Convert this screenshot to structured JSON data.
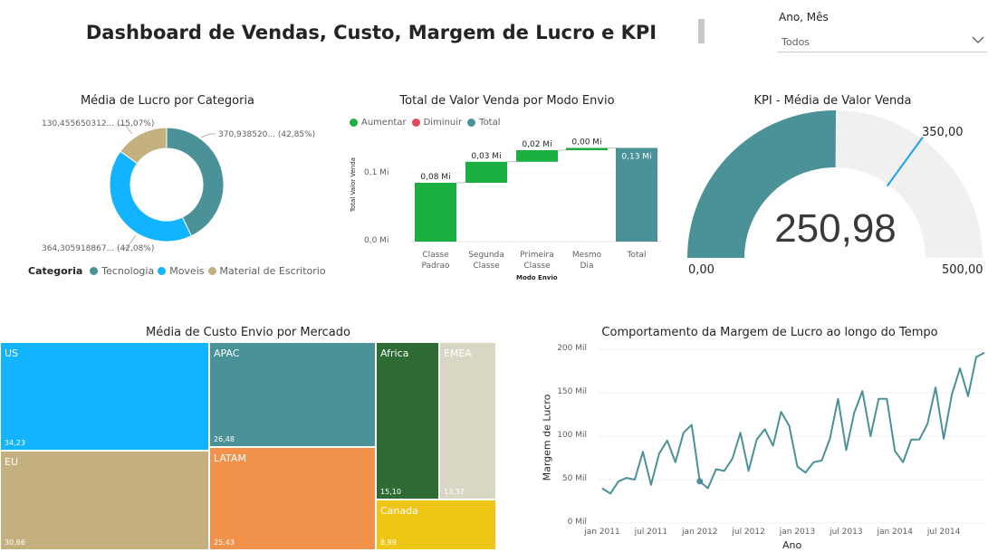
{
  "header": {
    "title": "Dashboard de Vendas, Custo, Margem de Lucro e KPI"
  },
  "slicer": {
    "label": "Ano, Mês",
    "value": "Todos",
    "chevron_icon": "chevron-down-icon"
  },
  "colors": {
    "teal": "#4A9297",
    "blue": "#12B4FF",
    "tan": "#C4B07F",
    "green_up": "#1AAF40",
    "red_down": "#E0485B",
    "orange": "#F2914A",
    "dark_green": "#2F6B35",
    "light_gray": "#D7D7C3",
    "yellow": "#EFC516",
    "gauge_bg": "#F0F0F0",
    "gauge_target": "#1AA3E8"
  },
  "donut": {
    "title": "Média de Lucro por Categoria",
    "legend_title": "Categoria",
    "labels": {
      "tecnologia": "370,938520... (42,85%)",
      "moveis": "364,305918867... (42,08%)",
      "material": "130,455650312... (15,07%)"
    },
    "chart_data": {
      "type": "pie",
      "categories": [
        "Tecnologia",
        "Moveis",
        "Material de Escritorio"
      ],
      "values": [
        370.94,
        364.31,
        130.46
      ],
      "percents": [
        42.85,
        42.08,
        15.07
      ],
      "legend": "bottom-left"
    }
  },
  "waterfall": {
    "title": "Total de Valor Venda por Modo Envio",
    "legend": [
      "Aumentar",
      "Diminuir",
      "Total"
    ],
    "ylabel": "Total Valor Venda",
    "xlabel": "Modo Envio",
    "yticks": [
      "0,0 Mi",
      "0,1 Mi"
    ],
    "categories": [
      {
        "line1": "Classe",
        "line2": "Padrao"
      },
      {
        "line1": "Segunda",
        "line2": "Classe"
      },
      {
        "line1": "Primeira",
        "line2": "Classe"
      },
      {
        "line1": "Mesmo",
        "line2": "Dia"
      },
      {
        "line1": "Total",
        "line2": ""
      }
    ],
    "data_labels": [
      "0,08 Mi",
      "0,03 Mi",
      "0,02 Mi",
      "0,00 Mi",
      "0,13 Mi"
    ],
    "chart_data": {
      "type": "bar",
      "subtype": "waterfall",
      "categories": [
        "Classe Padrao",
        "Segunda Classe",
        "Primeira Classe",
        "Mesmo Dia",
        "Total"
      ],
      "values": [
        0.08,
        0.03,
        0.02,
        0.0,
        0.13
      ],
      "units": "Mi",
      "ylim": [
        0,
        0.13
      ]
    }
  },
  "kpi": {
    "title": "KPI - Média de Valor Venda",
    "value": "250,98",
    "min": "0,00",
    "max": "500,00",
    "target": "350,00",
    "chart_data": {
      "type": "gauge",
      "value": 250.98,
      "min": 0,
      "max": 500,
      "target": 350
    }
  },
  "treemap": {
    "title": "Média de Custo Envio por Mercado",
    "cells": [
      {
        "name": "US",
        "value": "34,23"
      },
      {
        "name": "EU",
        "value": "30,66"
      },
      {
        "name": "APAC",
        "value": "26,48"
      },
      {
        "name": "LATAM",
        "value": "25,43"
      },
      {
        "name": "Africa",
        "value": "15,10"
      },
      {
        "name": "EMEA",
        "value": "13,37"
      },
      {
        "name": "Canada",
        "value": "8,99"
      }
    ],
    "chart_data": {
      "type": "treemap",
      "categories": [
        "US",
        "EU",
        "APAC",
        "LATAM",
        "Africa",
        "EMEA",
        "Canada"
      ],
      "values": [
        34.23,
        30.66,
        26.48,
        25.43,
        15.1,
        13.37,
        8.99
      ]
    }
  },
  "line": {
    "title": "Comportamento da Margem de Lucro ao longo do Tempo",
    "ylabel": "Margem de Lucro",
    "xlabel": "Ano",
    "yticks": [
      "0 Mil",
      "50 Mil",
      "100 Mil",
      "150 Mil",
      "200 Mil"
    ],
    "xticks": [
      "jan 2011",
      "jul 2011",
      "jan 2012",
      "jul 2012",
      "jan 2013",
      "jul 2013",
      "jan 2014",
      "jul 2014"
    ],
    "chart_data": {
      "type": "line",
      "x": [
        "2011-01",
        "2011-02",
        "2011-03",
        "2011-04",
        "2011-05",
        "2011-06",
        "2011-07",
        "2011-08",
        "2011-09",
        "2011-10",
        "2011-11",
        "2011-12",
        "2012-01",
        "2012-02",
        "2012-03",
        "2012-04",
        "2012-05",
        "2012-06",
        "2012-07",
        "2012-08",
        "2012-09",
        "2012-10",
        "2012-11",
        "2012-12",
        "2013-01",
        "2013-02",
        "2013-03",
        "2013-04",
        "2013-05",
        "2013-06",
        "2013-07",
        "2013-08",
        "2013-09",
        "2013-10",
        "2013-11",
        "2013-12",
        "2014-01",
        "2014-02",
        "2014-03",
        "2014-04",
        "2014-05",
        "2014-06",
        "2014-07",
        "2014-08",
        "2014-09",
        "2014-10",
        "2014-11",
        "2014-12"
      ],
      "series": [
        {
          "values": [
            40,
            34,
            48,
            52,
            50,
            82,
            44,
            80,
            95,
            70,
            104,
            113,
            48,
            40,
            62,
            60,
            74,
            104,
            60,
            96,
            108,
            89,
            128,
            112,
            65,
            58,
            70,
            72,
            97,
            143,
            84,
            127,
            152,
            100,
            143,
            143,
            83,
            70,
            96,
            96,
            114,
            156,
            97,
            148,
            178,
            146,
            191,
            196
          ]
        }
      ],
      "ylim": [
        0,
        200
      ],
      "units": "Mil",
      "highlight_index": 12
    }
  }
}
